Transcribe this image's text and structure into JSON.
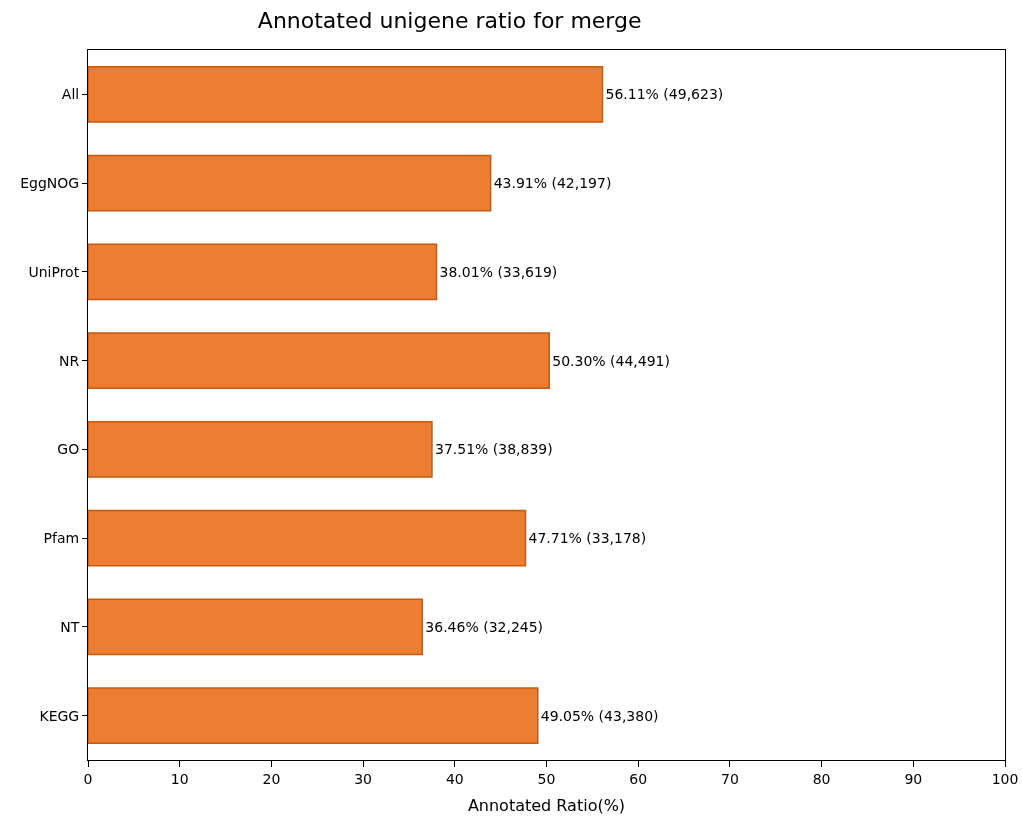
{
  "chart_data": {
    "type": "bar",
    "orientation": "horizontal",
    "title": "Annotated unigene ratio for merge",
    "xlabel": "Annotated Ratio(%)",
    "categories": [
      "All",
      "EggNOG",
      "UniProt",
      "NR",
      "GO",
      "Pfam",
      "NT",
      "KEGG"
    ],
    "values": [
      56.11,
      43.91,
      38.01,
      50.3,
      37.51,
      47.71,
      36.46,
      49.05
    ],
    "value_labels": [
      "56.11% (49,623)",
      "43.91% (42,197)",
      "38.01% (33,619)",
      "50.30% (44,491)",
      "37.51% (38,839)",
      "47.71% (33,178)",
      "36.46% (32,245)",
      "49.05% (43,380)"
    ],
    "color": "#ed7d31",
    "xlim": [
      0,
      100
    ],
    "xticks": [
      0,
      10,
      20,
      30,
      40,
      50,
      60,
      70,
      80,
      90,
      100
    ],
    "grid": false
  }
}
